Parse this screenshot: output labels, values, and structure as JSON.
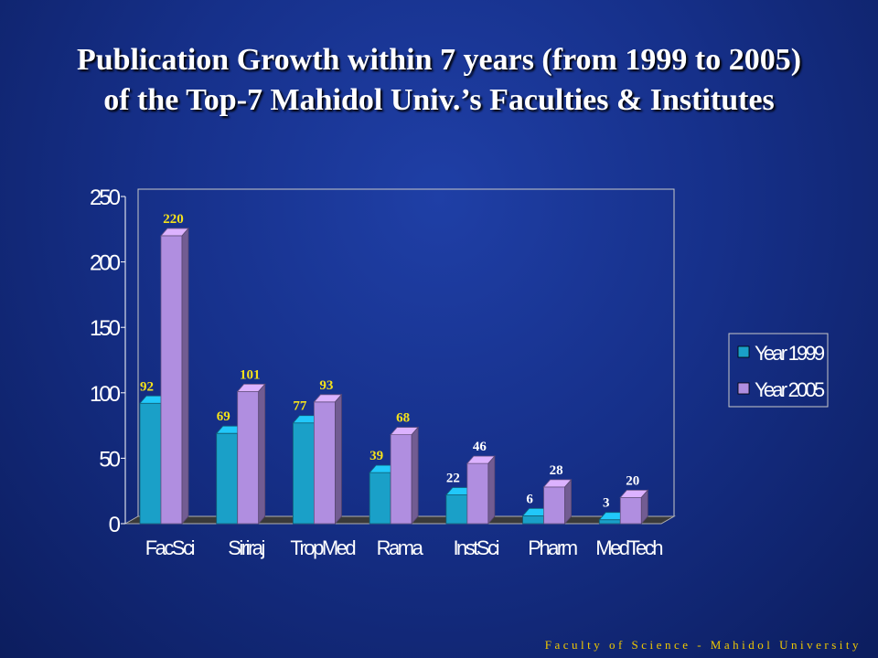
{
  "slide": {
    "title_line1": "Publication Growth within 7 years (from 1999 to 2005)",
    "title_line2": "of the Top-7 Mahidol Univ.’s Faculties & Institutes",
    "footer": "Faculty of Science - Mahidol University"
  },
  "colors": {
    "background": "#16308a",
    "series_1999": "#1aa0c8",
    "series_2005": "#b08ee0",
    "label_yellow": "#f5e21a",
    "label_white": "#ffffff",
    "footer": "#f0c800"
  },
  "chart_data": {
    "type": "bar",
    "categories": [
      "FacSci",
      "Siriraj",
      "TropMed",
      "Rama",
      "InstSci",
      "Pharm",
      "MedTech"
    ],
    "series": [
      {
        "name": "Year 1999",
        "values": [
          92,
          69,
          77,
          39,
          22,
          6,
          3
        ]
      },
      {
        "name": "Year 2005",
        "values": [
          220,
          101,
          93,
          68,
          46,
          28,
          20
        ]
      }
    ],
    "yticks": [
      "0",
      "50",
      "100",
      "150",
      "200",
      "250"
    ],
    "ylim": [
      0,
      250
    ],
    "style": "3d-clustered",
    "legend_position": "right",
    "grid": false
  }
}
